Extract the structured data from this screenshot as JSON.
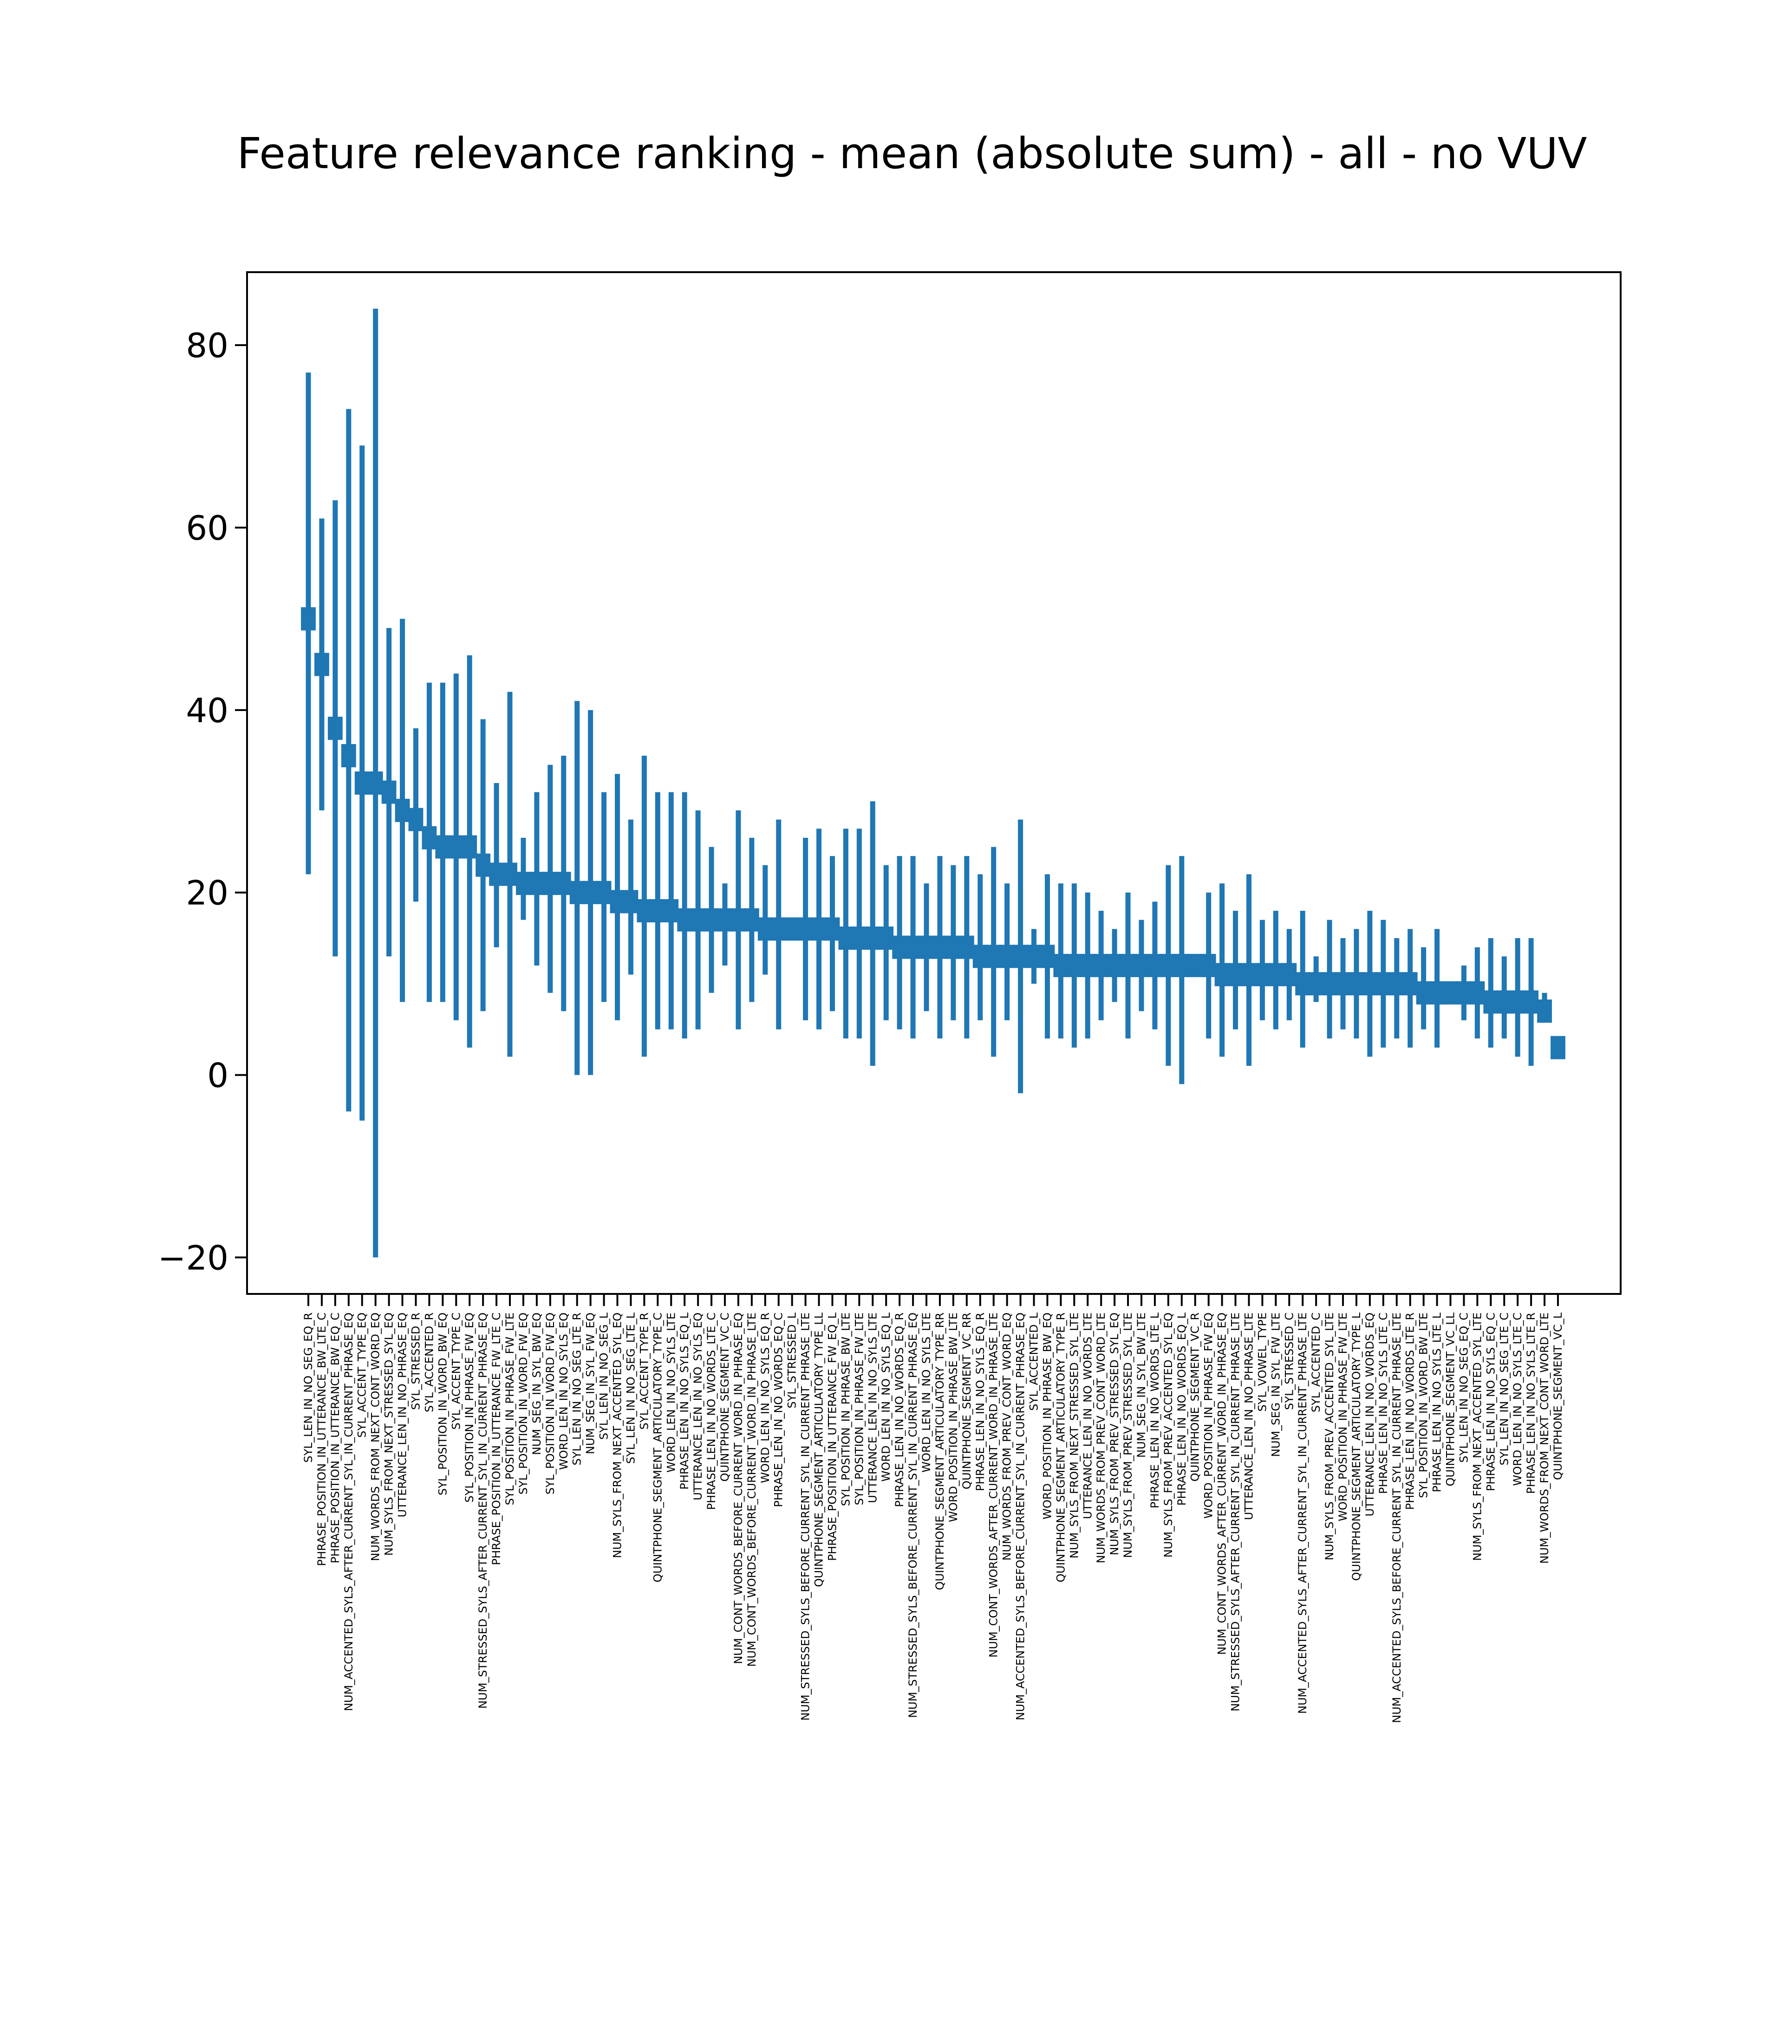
{
  "chart_data": {
    "type": "errorbar",
    "title": "Feature relevance ranking - mean (absolute sum) - all - no VUV",
    "xlabel": "",
    "ylabel": "",
    "ylim": [
      -24,
      88
    ],
    "yticks": [
      -20,
      0,
      20,
      40,
      60,
      80
    ],
    "grid": false,
    "color": "#1f77b4",
    "features": [
      {
        "name": "SYL_LEN_IN_NO_SEG_EQ_R",
        "mean": 50,
        "low": 22,
        "high": 77
      },
      {
        "name": "PHRASE_POSITION_IN_UTTERANCE_BW_LTE_C",
        "mean": 45,
        "low": 29,
        "high": 61
      },
      {
        "name": "PHRASE_POSITION_IN_UTTERANCE_BW_EQ_C",
        "mean": 38,
        "low": 13,
        "high": 63
      },
      {
        "name": "NUM_ACCENTED_SYLS_AFTER_CURRENT_SYL_IN_CURRENT_PHRASE_EQ",
        "mean": 35,
        "low": -4,
        "high": 73
      },
      {
        "name": "SYL_ACCENT_TYPE_EQ",
        "mean": 32,
        "low": -5,
        "high": 69
      },
      {
        "name": "NUM_WORDS_FROM_NEXT_CONT_WORD_EQ",
        "mean": 32,
        "low": -20,
        "high": 84
      },
      {
        "name": "NUM_SYLS_FROM_NEXT_STRESSED_SYL_EQ",
        "mean": 31,
        "low": 13,
        "high": 49
      },
      {
        "name": "UTTERANCE_LEN_IN_NO_PHRASE_EQ",
        "mean": 29,
        "low": 8,
        "high": 50
      },
      {
        "name": "SYL_STRESSED_R",
        "mean": 28,
        "low": 19,
        "high": 38
      },
      {
        "name": "SYL_ACCENTED_R",
        "mean": 26,
        "low": 8,
        "high": 43
      },
      {
        "name": "SYL_POSITION_IN_WORD_BW_EQ",
        "mean": 25,
        "low": 8,
        "high": 43
      },
      {
        "name": "SYL_ACCENT_TYPE_C",
        "mean": 25,
        "low": 6,
        "high": 44
      },
      {
        "name": "SYL_POSITION_IN_PHRASE_FW_EQ",
        "mean": 25,
        "low": 3,
        "high": 46
      },
      {
        "name": "NUM_STRESSED_SYLS_AFTER_CURRENT_SYL_IN_CURRENT_PHRASE_EQ",
        "mean": 23,
        "low": 7,
        "high": 39
      },
      {
        "name": "PHRASE_POSITION_IN_UTTERANCE_FW_LTE_C",
        "mean": 22,
        "low": 14,
        "high": 32
      },
      {
        "name": "SYL_POSITION_IN_PHRASE_FW_LTE",
        "mean": 22,
        "low": 2,
        "high": 42
      },
      {
        "name": "SYL_POSITION_IN_WORD_FW_EQ",
        "mean": 21,
        "low": 17,
        "high": 26
      },
      {
        "name": "NUM_SEG_IN_SYL_BW_EQ",
        "mean": 21,
        "low": 12,
        "high": 31
      },
      {
        "name": "SYL_POSITION_IN_WORD_FW_EQ",
        "mean": 21,
        "low": 9,
        "high": 34
      },
      {
        "name": "WORD_LEN_IN_NO_SYLS_EQ",
        "mean": 21,
        "low": 7,
        "high": 35
      },
      {
        "name": "SYL_LEN_IN_NO_SEG_LTE_R",
        "mean": 20,
        "low": 0,
        "high": 41
      },
      {
        "name": "NUM_SEG_IN_SYL_FW_EQ",
        "mean": 20,
        "low": 0,
        "high": 40
      },
      {
        "name": "SYL_LEN_IN_NO_SEG_L",
        "mean": 20,
        "low": 8,
        "high": 31
      },
      {
        "name": "NUM_SYLS_FROM_NEXT_ACCENTED_SYL_EQ",
        "mean": 19,
        "low": 6,
        "high": 33
      },
      {
        "name": "SYL_LEN_IN_NO_SEG_LTE_L",
        "mean": 19,
        "low": 11,
        "high": 28
      },
      {
        "name": "SYL_ACCENT_TYPE_R",
        "mean": 18,
        "low": 2,
        "high": 35
      },
      {
        "name": "QUINTPHONE_SEGMENT_ARTICULATORY_TYPE_C",
        "mean": 18,
        "low": 5,
        "high": 31
      },
      {
        "name": "WORD_LEN_IN_NO_SYLS_LTE",
        "mean": 18,
        "low": 5,
        "high": 31
      },
      {
        "name": "PHRASE_LEN_IN_NO_SYLS_EQ_L",
        "mean": 17,
        "low": 4,
        "high": 31
      },
      {
        "name": "UTTERANCE_LEN_IN_NO_SYLS_EQ",
        "mean": 17,
        "low": 5,
        "high": 29
      },
      {
        "name": "PHRASE_LEN_IN_NO_WORDS_LTE_C",
        "mean": 17,
        "low": 9,
        "high": 25
      },
      {
        "name": "QUINTPHONE_SEGMENT_VC_C",
        "mean": 17,
        "low": 12,
        "high": 21
      },
      {
        "name": "NUM_CONT_WORDS_BEFORE_CURRENT_WORD_IN_PHRASE_EQ",
        "mean": 17,
        "low": 5,
        "high": 29
      },
      {
        "name": "NUM_CONT_WORDS_BEFORE_CURRENT_WORD_IN_PHRASE_LTE",
        "mean": 17,
        "low": 8,
        "high": 26
      },
      {
        "name": "WORD_LEN_IN_NO_SYLS_EQ_R",
        "mean": 16,
        "low": 11,
        "high": 23
      },
      {
        "name": "PHRASE_LEN_IN_NO_WORDS_EQ_C",
        "mean": 16,
        "low": 5,
        "high": 28
      },
      {
        "name": "SYL_STRESSED_L",
        "mean": 16,
        "low": 15,
        "high": 17
      },
      {
        "name": "NUM_STRESSED_SYLS_BEFORE_CURRENT_SYL_IN_CURRENT_PHRASE_LTE",
        "mean": 16,
        "low": 6,
        "high": 26
      },
      {
        "name": "QUINTPHONE_SEGMENT_ARTICULATORY_TYPE_LL",
        "mean": 16,
        "low": 5,
        "high": 27
      },
      {
        "name": "PHRASE_POSITION_IN_UTTERANCE_FW_EQ_L",
        "mean": 16,
        "low": 7,
        "high": 24
      },
      {
        "name": "SYL_POSITION_IN_PHRASE_BW_LTE",
        "mean": 15,
        "low": 4,
        "high": 27
      },
      {
        "name": "SYL_POSITION_IN_PHRASE_FW_LTE",
        "mean": 15,
        "low": 4,
        "high": 27
      },
      {
        "name": "UTTERANCE_LEN_IN_NO_SYLS_LTE",
        "mean": 15,
        "low": 1,
        "high": 30
      },
      {
        "name": "WORD_LEN_IN_NO_SYLS_EQ_L",
        "mean": 15,
        "low": 6,
        "high": 23
      },
      {
        "name": "PHRASE_LEN_IN_NO_WORDS_EQ_R",
        "mean": 14,
        "low": 5,
        "high": 24
      },
      {
        "name": "NUM_STRESSED_SYLS_BEFORE_CURRENT_SYL_IN_CURRENT_PHRASE_EQ",
        "mean": 14,
        "low": 4,
        "high": 24
      },
      {
        "name": "WORD_LEN_IN_NO_SYLS_LTE",
        "mean": 14,
        "low": 7,
        "high": 21
      },
      {
        "name": "QUINTPHONE_SEGMENT_ARTICULATORY_TYPE_RR",
        "mean": 14,
        "low": 4,
        "high": 24
      },
      {
        "name": "WORD_POSITION_IN_PHRASE_BW_LTE",
        "mean": 14,
        "low": 6,
        "high": 23
      },
      {
        "name": "QUINTPHONE_SEGMENT_VC_RR",
        "mean": 14,
        "low": 4,
        "high": 24
      },
      {
        "name": "PHRASE_LEN_IN_NO_SYLS_EQ_R",
        "mean": 13,
        "low": 6,
        "high": 22
      },
      {
        "name": "NUM_CONT_WORDS_AFTER_CURRENT_WORD_IN_PHRASE_LTE",
        "mean": 13,
        "low": 2,
        "high": 25
      },
      {
        "name": "NUM_WORDS_FROM_PREV_CONT_WORD_EQ",
        "mean": 13,
        "low": 6,
        "high": 21
      },
      {
        "name": "NUM_ACCENTED_SYLS_BEFORE_CURRENT_SYL_IN_CURRENT_PHRASE_EQ",
        "mean": 13,
        "low": -2,
        "high": 28
      },
      {
        "name": "SYL_ACCENTED_L",
        "mean": 13,
        "low": 10,
        "high": 16
      },
      {
        "name": "WORD_POSITION_IN_PHRASE_BW_EQ",
        "mean": 13,
        "low": 4,
        "high": 22
      },
      {
        "name": "QUINTPHONE_SEGMENT_ARTICULATORY_TYPE_R",
        "mean": 12,
        "low": 4,
        "high": 21
      },
      {
        "name": "NUM_SYLS_FROM_NEXT_STRESSED_SYL_LTE",
        "mean": 12,
        "low": 3,
        "high": 21
      },
      {
        "name": "UTTERANCE_LEN_IN_NO_WORDS_LTE",
        "mean": 12,
        "low": 4,
        "high": 20
      },
      {
        "name": "NUM_WORDS_FROM_PREV_CONT_WORD_LTE",
        "mean": 12,
        "low": 6,
        "high": 18
      },
      {
        "name": "NUM_SYLS_FROM_PREV_STRESSED_SYL_EQ",
        "mean": 12,
        "low": 8,
        "high": 16
      },
      {
        "name": "NUM_SYLS_FROM_PREV_STRESSED_SYL_LTE",
        "mean": 12,
        "low": 4,
        "high": 20
      },
      {
        "name": "NUM_SEG_IN_SYL_BW_LTE",
        "mean": 12,
        "low": 7,
        "high": 17
      },
      {
        "name": "PHRASE_LEN_IN_NO_WORDS_LTE_L",
        "mean": 12,
        "low": 5,
        "high": 19
      },
      {
        "name": "NUM_SYLS_FROM_PREV_ACCENTED_SYL_EQ",
        "mean": 12,
        "low": 1,
        "high": 23
      },
      {
        "name": "PHRASE_LEN_IN_NO_WORDS_EQ_L",
        "mean": 12,
        "low": -1,
        "high": 24
      },
      {
        "name": "QUINTPHONE_SEGMENT_VC_R",
        "mean": 12,
        "low": 12,
        "high": 12
      },
      {
        "name": "WORD_POSITION_IN_PHRASE_FW_EQ",
        "mean": 12,
        "low": 4,
        "high": 20
      },
      {
        "name": "NUM_CONT_WORDS_AFTER_CURRENT_WORD_IN_PHRASE_EQ",
        "mean": 11,
        "low": 2,
        "high": 21
      },
      {
        "name": "NUM_STRESSED_SYLS_AFTER_CURRENT_SYL_IN_CURRENT_PHRASE_LTE",
        "mean": 11,
        "low": 5,
        "high": 18
      },
      {
        "name": "UTTERANCE_LEN_IN_NO_PHRASE_LTE",
        "mean": 11,
        "low": 1,
        "high": 22
      },
      {
        "name": "SYL_VOWEL_TYPE",
        "mean": 11,
        "low": 6,
        "high": 17
      },
      {
        "name": "NUM_SEG_IN_SYL_FW_LTE",
        "mean": 11,
        "low": 5,
        "high": 18
      },
      {
        "name": "SYL_STRESSED_C",
        "mean": 11,
        "low": 6,
        "high": 16
      },
      {
        "name": "NUM_ACCENTED_SYLS_AFTER_CURRENT_SYL_IN_CURRENT_PHRASE_LTE",
        "mean": 10,
        "low": 3,
        "high": 18
      },
      {
        "name": "SYL_ACCENTED_C",
        "mean": 10,
        "low": 8,
        "high": 13
      },
      {
        "name": "NUM_SYLS_FROM_PREV_ACCENTED_SYL_LTE",
        "mean": 10,
        "low": 4,
        "high": 17
      },
      {
        "name": "WORD_POSITION_IN_PHRASE_FW_LTE",
        "mean": 10,
        "low": 5,
        "high": 15
      },
      {
        "name": "QUINTPHONE_SEGMENT_ARTICULATORY_TYPE_L",
        "mean": 10,
        "low": 4,
        "high": 16
      },
      {
        "name": "UTTERANCE_LEN_IN_NO_WORDS_EQ",
        "mean": 10,
        "low": 2,
        "high": 18
      },
      {
        "name": "PHRASE_LEN_IN_NO_SYLS_LTE_C",
        "mean": 10,
        "low": 3,
        "high": 17
      },
      {
        "name": "NUM_ACCENTED_SYLS_BEFORE_CURRENT_SYL_IN_CURRENT_PHRASE_LTE",
        "mean": 10,
        "low": 4,
        "high": 15
      },
      {
        "name": "PHRASE_LEN_IN_NO_WORDS_LTE_R",
        "mean": 10,
        "low": 3,
        "high": 16
      },
      {
        "name": "SYL_POSITION_IN_WORD_BW_LTE",
        "mean": 9,
        "low": 5,
        "high": 14
      },
      {
        "name": "PHRASE_LEN_IN_NO_SYLS_LTE_L",
        "mean": 9,
        "low": 3,
        "high": 16
      },
      {
        "name": "QUINTPHONE_SEGMENT_VC_LL",
        "mean": 9,
        "low": 9,
        "high": 9
      },
      {
        "name": "SYL_LEN_IN_NO_SEG_EQ_C",
        "mean": 9,
        "low": 6,
        "high": 12
      },
      {
        "name": "NUM_SYLS_FROM_NEXT_ACCENTED_SYL_LTE",
        "mean": 9,
        "low": 4,
        "high": 14
      },
      {
        "name": "PHRASE_LEN_IN_NO_SYLS_EQ_C",
        "mean": 8,
        "low": 3,
        "high": 15
      },
      {
        "name": "SYL_LEN_IN_NO_SEG_LTE_C",
        "mean": 8,
        "low": 4,
        "high": 13
      },
      {
        "name": "WORD_LEN_IN_NO_SYLS_LTE_C",
        "mean": 8,
        "low": 2,
        "high": 15
      },
      {
        "name": "PHRASE_LEN_IN_NO_SYLS_LTE_R",
        "mean": 8,
        "low": 1,
        "high": 15
      },
      {
        "name": "NUM_WORDS_FROM_NEXT_CONT_WORD_LTE",
        "mean": 7,
        "low": 6,
        "high": 9
      },
      {
        "name": "QUINTPHONE_SEGMENT_VC_L",
        "mean": 3,
        "low": 3,
        "high": 3
      }
    ]
  }
}
